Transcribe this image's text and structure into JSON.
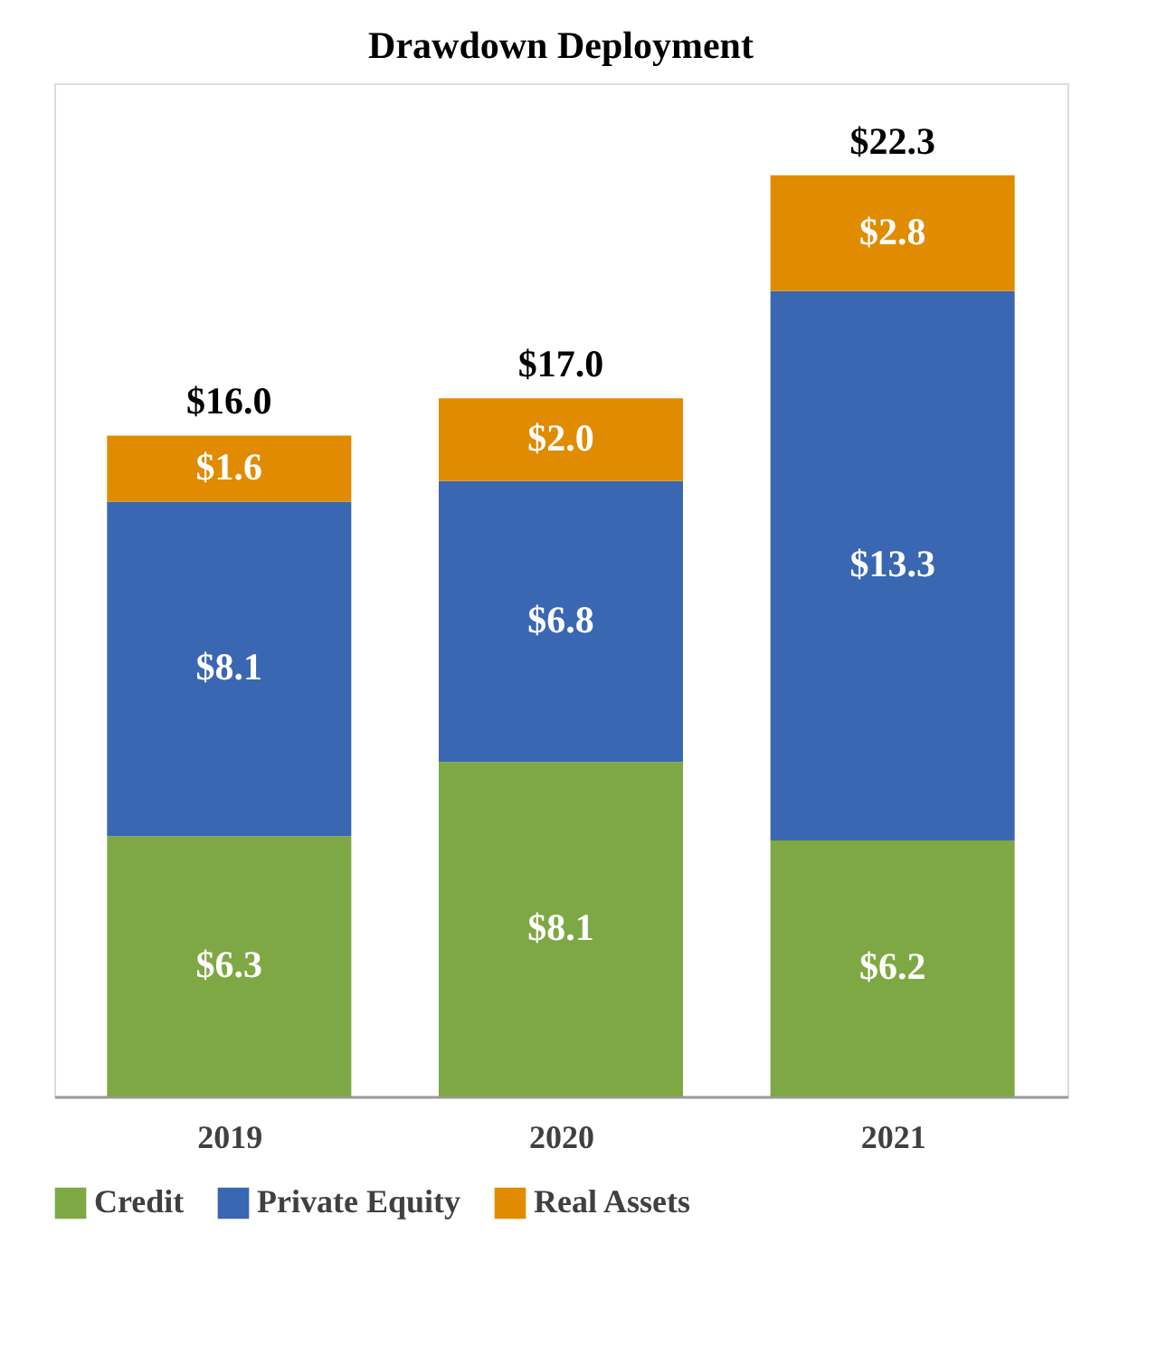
{
  "chart_data": {
    "type": "bar",
    "title": "Drawdown Deployment",
    "stacked": true,
    "legend": "bottom",
    "grid": false,
    "tick_labels": "x",
    "categories": [
      "2019",
      "2020",
      "2021"
    ],
    "series": [
      {
        "name": "Credit",
        "color": "#7ea843",
        "values": [
          6.3,
          8.1,
          6.2
        ],
        "value_labels": [
          "$6.3",
          "$8.1",
          "$6.2"
        ]
      },
      {
        "name": "Private Equity",
        "color": "#3a67b1",
        "values": [
          8.1,
          6.8,
          13.3
        ],
        "value_labels": [
          "$8.1",
          "$6.8",
          "$13.3"
        ]
      },
      {
        "name": "Real Assets",
        "color": "#e08b00",
        "values": [
          1.6,
          2.0,
          2.8
        ],
        "value_labels": [
          "$1.6",
          "$2.0",
          "$2.8"
        ]
      }
    ],
    "totals": [
      "$16.0",
      "$17.0",
      "$22.3"
    ]
  }
}
